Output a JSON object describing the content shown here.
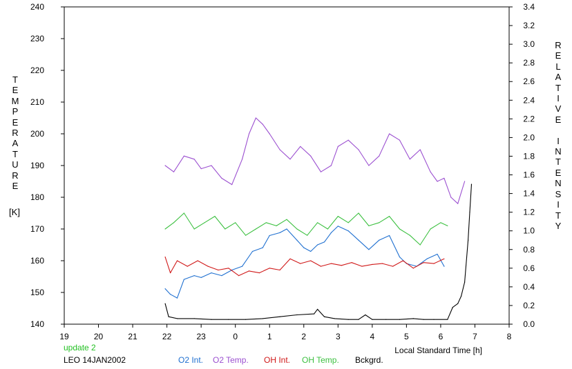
{
  "colors": {
    "o2_int": "#1e6fd0",
    "o2_temp": "#9b4fd0",
    "oh_int": "#d01818",
    "oh_temp": "#3cc040",
    "bckgrd": "#000000",
    "update": "#22c022"
  },
  "footer": {
    "update_text": "update 2",
    "station_date": "LEO 14JAN2002"
  },
  "chart_data": {
    "type": "line",
    "xlabel": "Local Standard Time [h]",
    "ylabel_left": "TEMPERATURE",
    "ylabel_left_unit": "[K]",
    "ylabel_right": "RELATIVE INTENSITY",
    "x_ticks": [
      "19",
      "20",
      "21",
      "22",
      "23",
      "0",
      "1",
      "2",
      "3",
      "4",
      "5",
      "6",
      "7",
      "8"
    ],
    "y_left_ticks": [
      "140",
      "150",
      "160",
      "170",
      "180",
      "190",
      "200",
      "210",
      "220",
      "230",
      "240"
    ],
    "y_right_ticks": [
      "0.0",
      "0.2",
      "0.4",
      "0.6",
      "0.8",
      "1.0",
      "1.2",
      "1.4",
      "1.6",
      "1.8",
      "2.0",
      "2.2",
      "2.4",
      "2.6",
      "2.8",
      "3.0",
      "3.2",
      "3.4"
    ],
    "xlim": [
      19,
      32
    ],
    "ylim_left": [
      140,
      240
    ],
    "ylim_right": [
      0.0,
      3.4
    ],
    "legend_placement": "bottom",
    "grid": false,
    "series": [
      {
        "name": "O2 Int.",
        "key": "o2_int",
        "axis": "right",
        "x": [
          21.95,
          22.1,
          22.3,
          22.5,
          22.8,
          23.0,
          23.3,
          23.6,
          23.9,
          24.2,
          24.5,
          24.8,
          25.0,
          25.3,
          25.5,
          25.8,
          26.0,
          26.2,
          26.4,
          26.6,
          26.8,
          27.0,
          27.3,
          27.6,
          27.9,
          28.2,
          28.5,
          28.8,
          29.0,
          29.3,
          29.6,
          29.9,
          30.1
        ],
        "y": [
          0.38,
          0.32,
          0.28,
          0.48,
          0.52,
          0.5,
          0.55,
          0.52,
          0.58,
          0.62,
          0.78,
          0.82,
          0.95,
          0.98,
          1.02,
          0.9,
          0.82,
          0.78,
          0.85,
          0.88,
          0.98,
          1.05,
          1.0,
          0.9,
          0.8,
          0.9,
          0.95,
          0.72,
          0.65,
          0.62,
          0.7,
          0.75,
          0.62
        ]
      },
      {
        "name": "O2 Temp.",
        "key": "o2_temp",
        "axis": "left",
        "x": [
          21.95,
          22.2,
          22.5,
          22.8,
          23.0,
          23.3,
          23.6,
          23.9,
          24.2,
          24.4,
          24.6,
          24.8,
          25.0,
          25.3,
          25.6,
          25.9,
          26.2,
          26.5,
          26.8,
          27.0,
          27.3,
          27.6,
          27.9,
          28.2,
          28.5,
          28.8,
          29.1,
          29.4,
          29.7,
          29.9,
          30.1,
          30.3,
          30.5,
          30.7
        ],
        "y": [
          190,
          188,
          193,
          192,
          189,
          190,
          186,
          184,
          192,
          200,
          205,
          203,
          200,
          195,
          192,
          196,
          193,
          188,
          190,
          196,
          198,
          195,
          190,
          193,
          200,
          198,
          192,
          195,
          188,
          185,
          186,
          180,
          178,
          185
        ]
      },
      {
        "name": "OH Int.",
        "key": "oh_int",
        "axis": "right",
        "x": [
          21.95,
          22.1,
          22.3,
          22.6,
          22.9,
          23.2,
          23.5,
          23.8,
          24.1,
          24.4,
          24.7,
          25.0,
          25.3,
          25.6,
          25.9,
          26.2,
          26.5,
          26.8,
          27.1,
          27.4,
          27.7,
          28.0,
          28.3,
          28.6,
          28.9,
          29.2,
          29.5,
          29.8,
          30.1
        ],
        "y": [
          0.72,
          0.55,
          0.68,
          0.62,
          0.68,
          0.62,
          0.58,
          0.6,
          0.52,
          0.57,
          0.55,
          0.6,
          0.58,
          0.7,
          0.65,
          0.68,
          0.62,
          0.65,
          0.63,
          0.66,
          0.62,
          0.64,
          0.65,
          0.62,
          0.68,
          0.6,
          0.66,
          0.65,
          0.7
        ]
      },
      {
        "name": "OH Temp.",
        "key": "oh_temp",
        "axis": "left",
        "x": [
          21.95,
          22.2,
          22.5,
          22.8,
          23.1,
          23.4,
          23.7,
          24.0,
          24.3,
          24.6,
          24.9,
          25.2,
          25.5,
          25.8,
          26.1,
          26.4,
          26.7,
          27.0,
          27.3,
          27.6,
          27.9,
          28.2,
          28.5,
          28.8,
          29.1,
          29.4,
          29.7,
          30.0,
          30.2
        ],
        "y": [
          170,
          172,
          175,
          170,
          172,
          174,
          170,
          172,
          168,
          170,
          172,
          171,
          173,
          170,
          168,
          172,
          170,
          174,
          172,
          175,
          171,
          172,
          174,
          170,
          168,
          165,
          170,
          172,
          171
        ]
      },
      {
        "name": "Bckgrd.",
        "key": "bckgrd",
        "axis": "right",
        "x": [
          21.95,
          22.05,
          22.3,
          22.8,
          23.3,
          23.8,
          24.3,
          24.8,
          25.3,
          25.8,
          26.3,
          26.4,
          26.6,
          26.9,
          27.3,
          27.6,
          27.8,
          28.0,
          28.4,
          28.8,
          29.2,
          29.5,
          29.8,
          30.2,
          30.35,
          30.5,
          30.6,
          30.7,
          30.8,
          30.85,
          30.9
        ],
        "y": [
          0.22,
          0.08,
          0.06,
          0.06,
          0.05,
          0.05,
          0.05,
          0.06,
          0.08,
          0.1,
          0.11,
          0.16,
          0.08,
          0.06,
          0.05,
          0.05,
          0.1,
          0.05,
          0.05,
          0.05,
          0.06,
          0.05,
          0.05,
          0.05,
          0.18,
          0.22,
          0.3,
          0.45,
          0.9,
          1.2,
          1.5
        ]
      }
    ]
  }
}
